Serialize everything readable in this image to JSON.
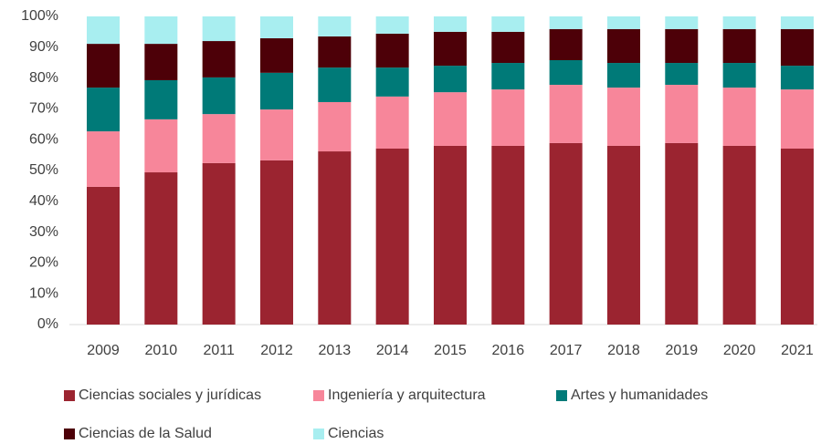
{
  "chart_data": {
    "type": "stacked_bar",
    "categories": [
      "2009",
      "2010",
      "2011",
      "2012",
      "2013",
      "2014",
      "2015",
      "2016",
      "2017",
      "2018",
      "2019",
      "2020",
      "2021"
    ],
    "series": [
      {
        "name": "Ciencias sociales y jurídicas",
        "color": "#9b2430",
        "values": [
          44.7,
          49.4,
          52.4,
          53.3,
          56.2,
          57.1,
          58.0,
          58.0,
          58.9,
          58.0,
          58.9,
          58.0,
          57.1
        ]
      },
      {
        "name": "Ingeniería y arquitectura",
        "color": "#f7869a",
        "values": [
          18.0,
          17.2,
          15.9,
          16.5,
          16.0,
          16.9,
          17.4,
          18.3,
          18.9,
          18.9,
          18.9,
          18.9,
          19.2
        ]
      },
      {
        "name": "Artes y humanidades",
        "color": "#007a78",
        "values": [
          14.2,
          12.7,
          11.9,
          11.9,
          11.2,
          9.4,
          8.6,
          8.6,
          8.0,
          8.0,
          7.1,
          8.0,
          7.7
        ]
      },
      {
        "name": "Ciencias de la Salud",
        "color": "#4d0008",
        "values": [
          14.2,
          11.8,
          11.8,
          11.2,
          10.1,
          11.0,
          11.0,
          10.1,
          10.1,
          11.0,
          11.0,
          11.0,
          11.9
        ]
      },
      {
        "name": "Ciencias",
        "color": "#a8eef0",
        "values": [
          8.9,
          8.9,
          8.0,
          7.1,
          6.5,
          5.6,
          5.0,
          5.0,
          4.1,
          4.1,
          4.1,
          4.1,
          4.1
        ]
      }
    ],
    "ylim": [
      0,
      100
    ],
    "yticks": [
      {
        "value": 0,
        "label": "0%"
      },
      {
        "value": 10,
        "label": "10%"
      },
      {
        "value": 20,
        "label": "20%"
      },
      {
        "value": 30,
        "label": "30%"
      },
      {
        "value": 40,
        "label": "40%"
      },
      {
        "value": 50,
        "label": "50%"
      },
      {
        "value": 60,
        "label": "60%"
      },
      {
        "value": 70,
        "label": "70%"
      },
      {
        "value": 80,
        "label": "80%"
      },
      {
        "value": 90,
        "label": "90%"
      },
      {
        "value": 100,
        "label": "100%"
      }
    ],
    "grid": false,
    "legend": "bottom"
  }
}
